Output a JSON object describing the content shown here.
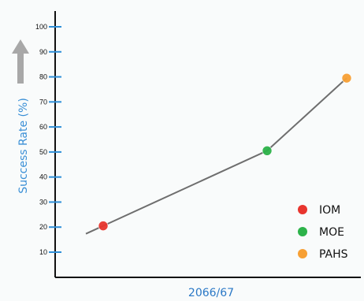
{
  "chart_data": {
    "type": "line",
    "ylabel": "Success Rate (%)",
    "xlabel": "2066/67",
    "ylim": [
      0,
      100
    ],
    "yticks": [
      10,
      20,
      30,
      40,
      50,
      60,
      70,
      80,
      90,
      100
    ],
    "ytick_labels": [
      "10",
      "20",
      "30",
      "40",
      "50",
      "60",
      "70",
      "80",
      "90",
      "100"
    ],
    "grid": false,
    "legend_position": "bottom-right",
    "series": [
      {
        "values": [
          {
            "label": "IOM",
            "y": 20.5,
            "color": "#e8352e"
          },
          {
            "label": "MOE",
            "y": 50.5,
            "color": "#2db34a"
          },
          {
            "label": "PAHS",
            "y": 79.5,
            "color": "#f7a034"
          }
        ]
      }
    ],
    "legend": [
      {
        "label": "IOM",
        "color": "#e8352e"
      },
      {
        "label": "MOE",
        "color": "#2db34a"
      },
      {
        "label": "PAHS",
        "color": "#f7a034"
      }
    ],
    "colors": {
      "axis": "#111111",
      "tick": "#2f8fd8",
      "line": "#6e6e6e",
      "arrow": "#a8a8a8",
      "ylabel": "#3a8fd6",
      "xlabel": "#2a78c6"
    }
  }
}
